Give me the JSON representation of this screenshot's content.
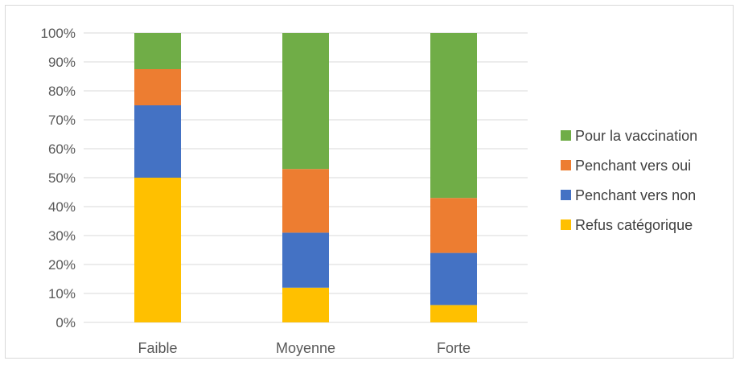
{
  "chart_data": {
    "type": "bar",
    "stacked": true,
    "percent": true,
    "categories": [
      "Faible",
      "Moyenne",
      "Forte"
    ],
    "series": [
      {
        "name": "Refus catégorique",
        "color": "#FFC000",
        "values": [
          50,
          12,
          6
        ]
      },
      {
        "name": "Penchant vers non",
        "color": "#4472C4",
        "values": [
          25,
          19,
          18
        ]
      },
      {
        "name": "Penchant vers oui",
        "color": "#ED7D31",
        "values": [
          12.5,
          22,
          19
        ]
      },
      {
        "name": "Pour la vaccination",
        "color": "#70AD47",
        "values": [
          12.5,
          47,
          57
        ]
      }
    ],
    "ylim": [
      0,
      100
    ],
    "yticks": [
      "0%",
      "10%",
      "20%",
      "30%",
      "40%",
      "50%",
      "60%",
      "70%",
      "80%",
      "90%",
      "100%"
    ],
    "grid": true,
    "legend_position": "right",
    "title": "",
    "xlabel": "",
    "ylabel": ""
  }
}
